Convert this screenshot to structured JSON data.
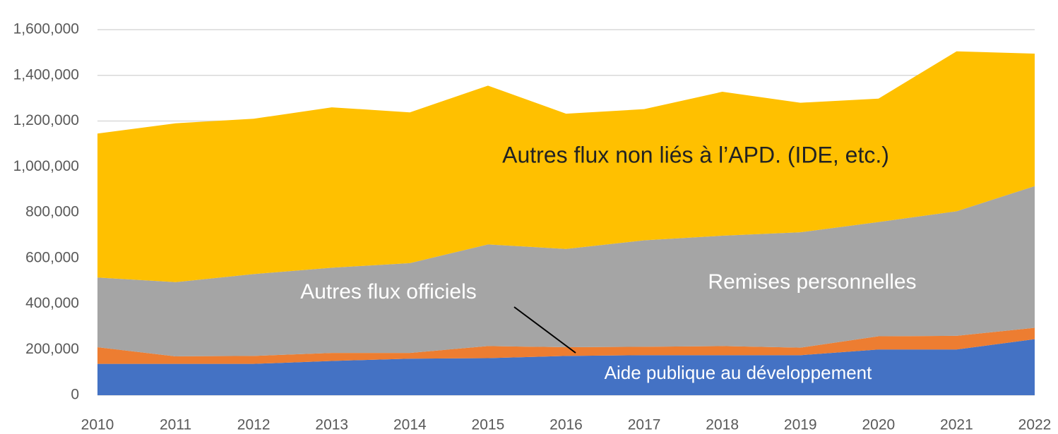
{
  "chart_data": {
    "type": "stacked_area",
    "categories": [
      "2010",
      "2011",
      "2012",
      "2013",
      "2014",
      "2015",
      "2016",
      "2017",
      "2018",
      "2019",
      "2020",
      "2021",
      "2022"
    ],
    "series": [
      {
        "name": "Aide publique au développement",
        "color": "#4472c4",
        "values": [
          137000,
          137000,
          137000,
          150000,
          160000,
          162000,
          172000,
          175000,
          175000,
          175000,
          200000,
          200000,
          245000
        ]
      },
      {
        "name": "Autres flux officiels",
        "color": "#ed7d31",
        "values": [
          73000,
          33000,
          35000,
          35000,
          25000,
          53000,
          38000,
          37000,
          40000,
          33000,
          58000,
          60000,
          50000
        ]
      },
      {
        "name": "Remises personnelles",
        "color": "#a5a5a5",
        "values": [
          305000,
          325000,
          358000,
          373000,
          393000,
          445000,
          430000,
          466000,
          483000,
          505000,
          500000,
          545000,
          620000
        ]
      },
      {
        "name": "Autres flux non liés à l’APD. (IDE, etc.)",
        "color": "#ffc000",
        "values": [
          630000,
          695000,
          680000,
          702000,
          660000,
          695000,
          592000,
          574000,
          630000,
          567000,
          540000,
          700000,
          580000
        ]
      }
    ],
    "ylim": [
      0,
      1600000
    ],
    "yticks": [
      0,
      {
        "value": 200000,
        "label": "200,000"
      },
      {
        "value": 400000,
        "label": "400,000"
      },
      {
        "value": 600000,
        "label": "600,000"
      },
      {
        "value": 800000,
        "label": "800,000"
      },
      {
        "value": 1000000,
        "label": "1,000,000"
      },
      {
        "value": 1200000,
        "label": "1,200,000"
      },
      {
        "value": 1400000,
        "label": "1,400,000"
      },
      {
        "value": 1600000,
        "label": "1,600,000"
      }
    ],
    "grid": true
  }
}
